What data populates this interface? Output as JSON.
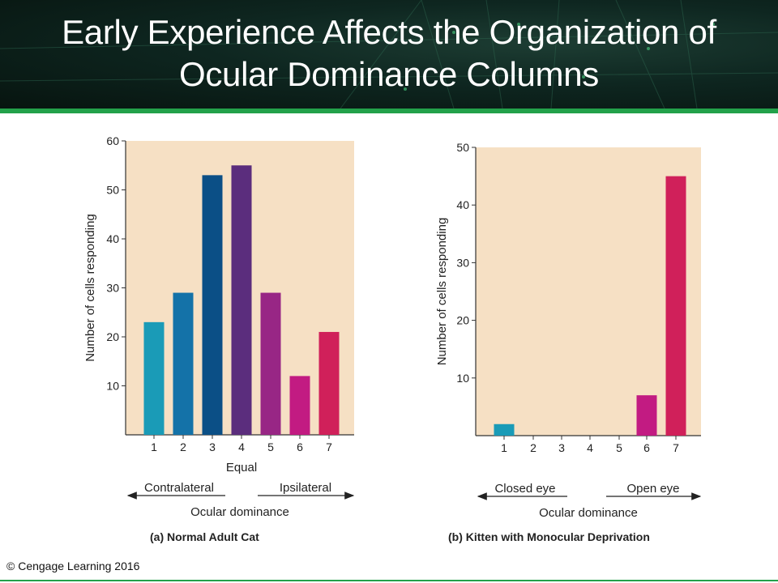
{
  "slide": {
    "title_line1": "Early Experience Affects the Organization of",
    "title_line2": "Ocular Dominance Columns",
    "copyright": "© Cengage Learning 2016",
    "colors": {
      "header_bg": "#0e2620",
      "accent_green": "#23a14a",
      "plot_bg": "#f6e0c4"
    }
  },
  "chart_data": [
    {
      "type": "bar",
      "panel_label": "(a)  Normal Adult Cat",
      "categories": [
        "1",
        "2",
        "3",
        "4",
        "5",
        "6",
        "7"
      ],
      "values": [
        23,
        29,
        53,
        55,
        29,
        12,
        21
      ],
      "colors": [
        "#1a9bb7",
        "#1472a8",
        "#0b4f86",
        "#5b2d7d",
        "#982685",
        "#c21b82",
        "#d0205a"
      ],
      "ylabel": "Number of cells responding",
      "yticks": [
        10,
        20,
        30,
        40,
        50,
        60
      ],
      "ylim": [
        0,
        60
      ],
      "mid_label": "Equal",
      "left_arrow_label": "Contralateral",
      "right_arrow_label": "Ipsilateral",
      "xlabel": "Ocular dominance",
      "grid": false
    },
    {
      "type": "bar",
      "panel_label": "(b)  Kitten with Monocular Deprivation",
      "categories": [
        "1",
        "2",
        "3",
        "4",
        "5",
        "6",
        "7"
      ],
      "values": [
        2,
        0,
        0,
        0,
        0,
        7,
        45
      ],
      "colors": [
        "#1a9bb7",
        "#1472a8",
        "#0b4f86",
        "#5b2d7d",
        "#982685",
        "#c21b82",
        "#d0205a"
      ],
      "ylabel": "Number of cells responding",
      "yticks": [
        10,
        20,
        30,
        40,
        50
      ],
      "ylim": [
        0,
        50
      ],
      "left_arrow_label": "Closed eye",
      "right_arrow_label": "Open eye",
      "xlabel": "Ocular dominance",
      "grid": false
    }
  ]
}
